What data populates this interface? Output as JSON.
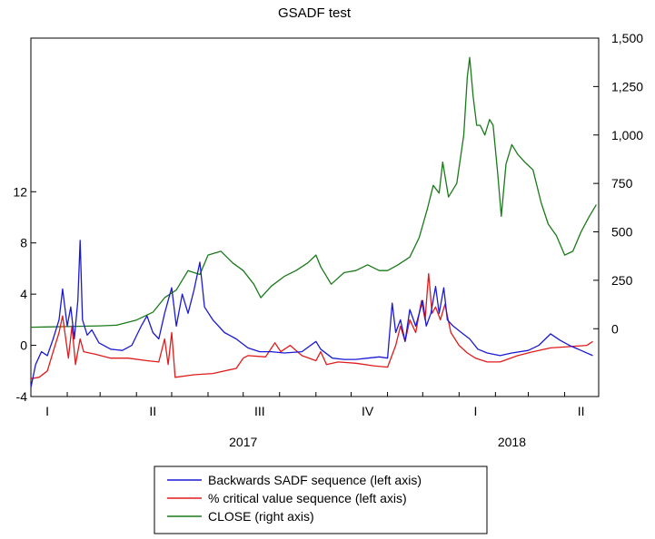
{
  "chart_data": {
    "type": "line",
    "title": "GSADF test",
    "grid": false,
    "legend_position": "bottom",
    "x_axis": {
      "range": [
        "2017-01-01",
        "2018-04-30"
      ],
      "quarter_ticks": [
        {
          "date": "2017-01-15",
          "label": "I"
        },
        {
          "date": "2017-04-15",
          "label": "II"
        },
        {
          "date": "2017-07-15",
          "label": "III"
        },
        {
          "date": "2017-10-15",
          "label": "IV"
        },
        {
          "date": "2018-01-15",
          "label": "I"
        },
        {
          "date": "2018-04-15",
          "label": "II"
        }
      ],
      "year_labels": [
        {
          "date": "2017-07-01",
          "label": "2017"
        },
        {
          "date": "2018-02-15",
          "label": "2018"
        }
      ]
    },
    "left_axis": {
      "ylim": [
        -4,
        24
      ],
      "ticks": [
        -4,
        0,
        4,
        8,
        12
      ],
      "tick_labels": [
        "-4",
        "0",
        "4",
        "8",
        "12"
      ]
    },
    "right_axis": {
      "ylim": [
        -350,
        1500
      ],
      "ticks": [
        0,
        250,
        500,
        750,
        1000,
        1250,
        1500
      ],
      "tick_labels": [
        "0",
        "250",
        "500",
        "750",
        "1,000",
        "1,250",
        "1,500"
      ]
    },
    "series": [
      {
        "name": "Backwards SADF sequence (left axis)",
        "axis": "left",
        "color": "#1a1ad6",
        "points": [
          [
            "2017-01-01",
            -3.3
          ],
          [
            "2017-01-05",
            -1.5
          ],
          [
            "2017-01-10",
            -0.5
          ],
          [
            "2017-01-15",
            -0.8
          ],
          [
            "2017-01-20",
            0.5
          ],
          [
            "2017-01-25",
            2.0
          ],
          [
            "2017-01-28",
            4.4
          ],
          [
            "2017-02-01",
            1.5
          ],
          [
            "2017-02-04",
            3.0
          ],
          [
            "2017-02-07",
            0.5
          ],
          [
            "2017-02-10",
            3.5
          ],
          [
            "2017-02-12",
            8.2
          ],
          [
            "2017-02-14",
            2.0
          ],
          [
            "2017-02-18",
            0.8
          ],
          [
            "2017-02-22",
            1.2
          ],
          [
            "2017-02-28",
            0.2
          ],
          [
            "2017-03-10",
            -0.3
          ],
          [
            "2017-03-20",
            -0.4
          ],
          [
            "2017-03-28",
            0.0
          ],
          [
            "2017-04-05",
            1.5
          ],
          [
            "2017-04-10",
            2.3
          ],
          [
            "2017-04-15",
            1.0
          ],
          [
            "2017-04-20",
            0.5
          ],
          [
            "2017-04-25",
            2.5
          ],
          [
            "2017-05-01",
            4.5
          ],
          [
            "2017-05-05",
            1.5
          ],
          [
            "2017-05-10",
            4.0
          ],
          [
            "2017-05-15",
            2.5
          ],
          [
            "2017-05-20",
            4.3
          ],
          [
            "2017-05-25",
            6.5
          ],
          [
            "2017-05-29",
            3.0
          ],
          [
            "2017-06-05",
            2.0
          ],
          [
            "2017-06-15",
            1.0
          ],
          [
            "2017-06-25",
            0.5
          ],
          [
            "2017-07-05",
            -0.2
          ],
          [
            "2017-07-15",
            -0.5
          ],
          [
            "2017-07-25",
            -0.5
          ],
          [
            "2017-08-05",
            -0.6
          ],
          [
            "2017-08-20",
            -0.5
          ],
          [
            "2017-09-01",
            0.3
          ],
          [
            "2017-09-05",
            -0.3
          ],
          [
            "2017-09-15",
            -1.0
          ],
          [
            "2017-09-25",
            -1.1
          ],
          [
            "2017-10-05",
            -1.1
          ],
          [
            "2017-10-15",
            -1.0
          ],
          [
            "2017-10-25",
            -0.9
          ],
          [
            "2017-11-01",
            -1.0
          ],
          [
            "2017-11-05",
            3.3
          ],
          [
            "2017-11-08",
            1.0
          ],
          [
            "2017-11-12",
            2.0
          ],
          [
            "2017-11-16",
            0.3
          ],
          [
            "2017-11-20",
            2.8
          ],
          [
            "2017-11-25",
            1.5
          ],
          [
            "2017-12-01",
            3.5
          ],
          [
            "2017-12-04",
            1.5
          ],
          [
            "2017-12-08",
            2.5
          ],
          [
            "2017-12-12",
            4.6
          ],
          [
            "2017-12-15",
            2.5
          ],
          [
            "2017-12-19",
            4.5
          ],
          [
            "2017-12-22",
            2.0
          ],
          [
            "2017-12-27",
            1.5
          ],
          [
            "2018-01-03",
            1.0
          ],
          [
            "2018-01-10",
            0.5
          ],
          [
            "2018-01-17",
            -0.3
          ],
          [
            "2018-01-25",
            -0.6
          ],
          [
            "2018-02-05",
            -0.8
          ],
          [
            "2018-02-15",
            -0.6
          ],
          [
            "2018-03-01",
            -0.4
          ],
          [
            "2018-03-10",
            0.0
          ],
          [
            "2018-03-20",
            0.9
          ],
          [
            "2018-03-28",
            0.4
          ],
          [
            "2018-04-05",
            0.0
          ],
          [
            "2018-04-15",
            -0.4
          ],
          [
            "2018-04-25",
            -0.8
          ]
        ]
      },
      {
        "name": "% critical value sequence (left axis)",
        "axis": "left",
        "color": "#e01b1b",
        "points": [
          [
            "2017-01-01",
            -2.6
          ],
          [
            "2017-01-08",
            -2.5
          ],
          [
            "2017-01-15",
            -2.0
          ],
          [
            "2017-01-20",
            -0.5
          ],
          [
            "2017-01-25",
            1.0
          ],
          [
            "2017-01-28",
            2.3
          ],
          [
            "2017-02-02",
            -1.0
          ],
          [
            "2017-02-05",
            1.5
          ],
          [
            "2017-02-08",
            -1.5
          ],
          [
            "2017-02-12",
            0.5
          ],
          [
            "2017-02-15",
            -0.5
          ],
          [
            "2017-02-25",
            -0.7
          ],
          [
            "2017-03-10",
            -1.0
          ],
          [
            "2017-03-25",
            -1.0
          ],
          [
            "2017-04-10",
            -1.2
          ],
          [
            "2017-04-20",
            -1.3
          ],
          [
            "2017-04-25",
            0.5
          ],
          [
            "2017-04-28",
            -1.5
          ],
          [
            "2017-05-01",
            1.0
          ],
          [
            "2017-05-04",
            -2.5
          ],
          [
            "2017-05-20",
            -2.3
          ],
          [
            "2017-06-05",
            -2.2
          ],
          [
            "2017-06-25",
            -1.8
          ],
          [
            "2017-07-01",
            -1.0
          ],
          [
            "2017-07-05",
            -0.8
          ],
          [
            "2017-07-20",
            -0.9
          ],
          [
            "2017-07-28",
            0.2
          ],
          [
            "2017-08-02",
            -0.5
          ],
          [
            "2017-08-10",
            0.0
          ],
          [
            "2017-08-20",
            -0.8
          ],
          [
            "2017-09-01",
            -1.2
          ],
          [
            "2017-09-05",
            -0.5
          ],
          [
            "2017-09-10",
            -1.5
          ],
          [
            "2017-09-20",
            -1.3
          ],
          [
            "2017-10-05",
            -1.4
          ],
          [
            "2017-10-20",
            -1.6
          ],
          [
            "2017-11-01",
            -1.7
          ],
          [
            "2017-11-08",
            0.0
          ],
          [
            "2017-11-12",
            1.5
          ],
          [
            "2017-11-16",
            0.3
          ],
          [
            "2017-11-20",
            2.0
          ],
          [
            "2017-11-25",
            1.0
          ],
          [
            "2017-11-30",
            3.5
          ],
          [
            "2017-12-03",
            2.0
          ],
          [
            "2017-12-06",
            5.6
          ],
          [
            "2017-12-09",
            2.5
          ],
          [
            "2017-12-12",
            3.0
          ],
          [
            "2017-12-16",
            2.0
          ],
          [
            "2017-12-20",
            3.2
          ],
          [
            "2017-12-25",
            1.0
          ],
          [
            "2018-01-01",
            0.0
          ],
          [
            "2018-01-08",
            -0.6
          ],
          [
            "2018-01-15",
            -1.0
          ],
          [
            "2018-01-25",
            -1.3
          ],
          [
            "2018-02-05",
            -1.3
          ],
          [
            "2018-02-20",
            -0.8
          ],
          [
            "2018-03-05",
            -0.5
          ],
          [
            "2018-03-20",
            -0.2
          ],
          [
            "2018-04-05",
            -0.1
          ],
          [
            "2018-04-20",
            0.0
          ],
          [
            "2018-04-25",
            0.3
          ]
        ]
      },
      {
        "name": "CLOSE (right axis)",
        "axis": "right",
        "color": "#1a7a1a",
        "points": [
          [
            "2017-01-01",
            8
          ],
          [
            "2017-01-15",
            9
          ],
          [
            "2017-02-01",
            11
          ],
          [
            "2017-02-15",
            13
          ],
          [
            "2017-03-01",
            15
          ],
          [
            "2017-03-15",
            18
          ],
          [
            "2017-04-01",
            45
          ],
          [
            "2017-04-15",
            85
          ],
          [
            "2017-04-25",
            160
          ],
          [
            "2017-05-05",
            200
          ],
          [
            "2017-05-15",
            300
          ],
          [
            "2017-05-25",
            280
          ],
          [
            "2017-06-01",
            380
          ],
          [
            "2017-06-12",
            400
          ],
          [
            "2017-06-22",
            340
          ],
          [
            "2017-07-01",
            300
          ],
          [
            "2017-07-10",
            230
          ],
          [
            "2017-07-16",
            160
          ],
          [
            "2017-07-25",
            220
          ],
          [
            "2017-08-05",
            270
          ],
          [
            "2017-08-15",
            300
          ],
          [
            "2017-08-25",
            340
          ],
          [
            "2017-09-01",
            380
          ],
          [
            "2017-09-05",
            320
          ],
          [
            "2017-09-14",
            230
          ],
          [
            "2017-09-25",
            290
          ],
          [
            "2017-10-05",
            300
          ],
          [
            "2017-10-15",
            330
          ],
          [
            "2017-10-25",
            300
          ],
          [
            "2017-11-01",
            300
          ],
          [
            "2017-11-10",
            330
          ],
          [
            "2017-11-20",
            370
          ],
          [
            "2017-11-28",
            470
          ],
          [
            "2017-12-05",
            620
          ],
          [
            "2017-12-10",
            740
          ],
          [
            "2017-12-15",
            700
          ],
          [
            "2017-12-18",
            860
          ],
          [
            "2017-12-23",
            680
          ],
          [
            "2017-12-30",
            750
          ],
          [
            "2018-01-05",
            1000
          ],
          [
            "2018-01-08",
            1300
          ],
          [
            "2018-01-10",
            1400
          ],
          [
            "2018-01-13",
            1200
          ],
          [
            "2018-01-16",
            1050
          ],
          [
            "2018-01-19",
            1050
          ],
          [
            "2018-01-23",
            1000
          ],
          [
            "2018-01-27",
            1080
          ],
          [
            "2018-01-30",
            1050
          ],
          [
            "2018-02-03",
            800
          ],
          [
            "2018-02-06",
            580
          ],
          [
            "2018-02-10",
            850
          ],
          [
            "2018-02-15",
            950
          ],
          [
            "2018-02-20",
            900
          ],
          [
            "2018-02-26",
            860
          ],
          [
            "2018-03-05",
            820
          ],
          [
            "2018-03-12",
            650
          ],
          [
            "2018-03-18",
            540
          ],
          [
            "2018-03-25",
            480
          ],
          [
            "2018-04-01",
            380
          ],
          [
            "2018-04-08",
            400
          ],
          [
            "2018-04-15",
            500
          ],
          [
            "2018-04-22",
            580
          ],
          [
            "2018-04-28",
            640
          ]
        ]
      }
    ]
  }
}
